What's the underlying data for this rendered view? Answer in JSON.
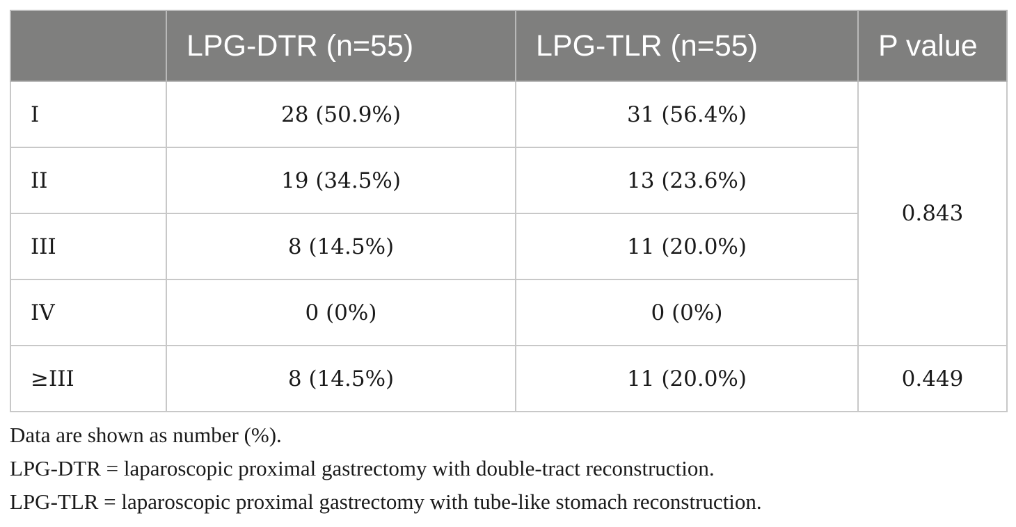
{
  "table": {
    "headers": [
      "",
      "LPG-DTR (n=55)",
      "LPG-TLR (n=55)",
      "P value"
    ],
    "rows": [
      {
        "grade": "I",
        "dtr": "28 (50.9%)",
        "tlr": "31 (56.4%)"
      },
      {
        "grade": "II",
        "dtr": "19 (34.5%)",
        "tlr": "13 (23.6%)"
      },
      {
        "grade": "III",
        "dtr": "8 (14.5%)",
        "tlr": "11 (20.0%)"
      },
      {
        "grade": "IV",
        "dtr": "0 (0%)",
        "tlr": "0 (0%)"
      }
    ],
    "grouped_p_value": "0.843",
    "summary_row": {
      "grade": "≥III",
      "dtr": "8 (14.5%)",
      "tlr": "11 (20.0%)",
      "p": "0.449"
    }
  },
  "notes": [
    "Data are shown as number (%).",
    "LPG-DTR = laparoscopic proximal gastrectomy with double-tract reconstruction.",
    "LPG-TLR = laparoscopic proximal gastrectomy with tube-like stomach reconstruction."
  ],
  "colors": {
    "header_bg": "#7f7f7e",
    "header_text": "#ffffff",
    "border": "#c8c8c8",
    "body_text": "#1a1a1a"
  }
}
